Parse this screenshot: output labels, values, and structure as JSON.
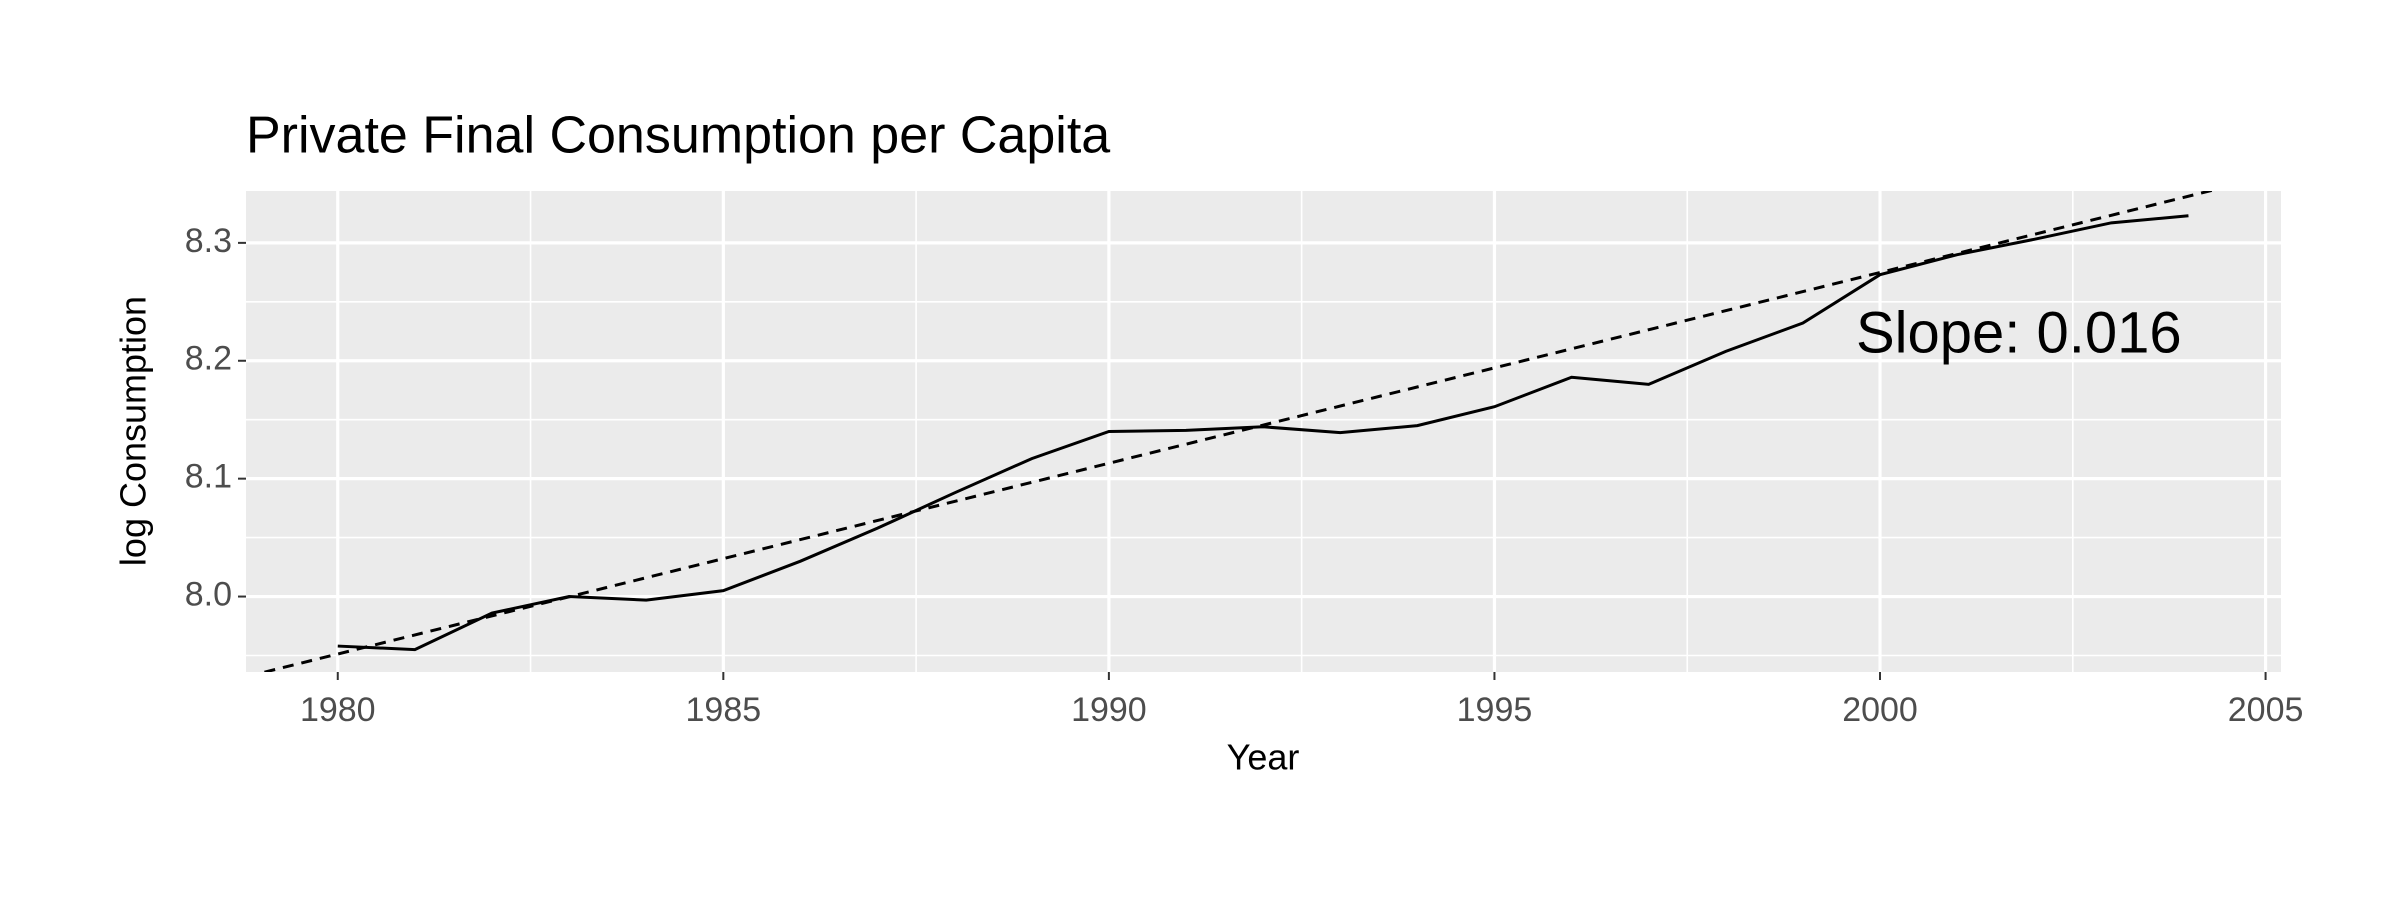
{
  "chart_data": {
    "type": "line",
    "title": "Private Final Consumption per Capita",
    "x_label": "Year",
    "y_label": "log Consumption",
    "x": [
      1980,
      1981,
      1982,
      1983,
      1984,
      1985,
      1986,
      1987,
      1988,
      1989,
      1990,
      1991,
      1992,
      1993,
      1994,
      1995,
      1996,
      1997,
      1998,
      1999,
      2000,
      2001,
      2002,
      2003,
      2004
    ],
    "values": [
      7.958,
      7.955,
      7.986,
      8.0,
      7.997,
      8.005,
      8.03,
      8.058,
      8.088,
      8.117,
      8.14,
      8.141,
      8.144,
      8.139,
      8.145,
      8.161,
      8.186,
      8.18,
      8.208,
      8.232,
      8.273,
      8.29,
      8.303,
      8.317,
      8.323
    ],
    "color": "#000000",
    "trend": {
      "x": [
        1978.81,
        2005.2
      ],
      "values": [
        7.932,
        8.359
      ],
      "color": "#000000",
      "dash": true
    },
    "annotation": {
      "text": "Slope: 0.016",
      "x": 2001.8,
      "y": 8.22
    },
    "xlim": [
      1978.81,
      2005.2
    ],
    "ylim": [
      7.936,
      8.344
    ],
    "xticks": [
      1980,
      1985,
      1990,
      1995,
      2000,
      2005
    ],
    "yticks": [
      {
        "value": 8.0,
        "label": "8.0"
      },
      8.1,
      8.2,
      8.3
    ],
    "xminor": [
      1982.5,
      1987.5,
      1992.5,
      1997.5,
      2002.5
    ],
    "yminor": [
      7.95,
      8.05,
      8.15,
      8.25
    ],
    "grid": true
  }
}
